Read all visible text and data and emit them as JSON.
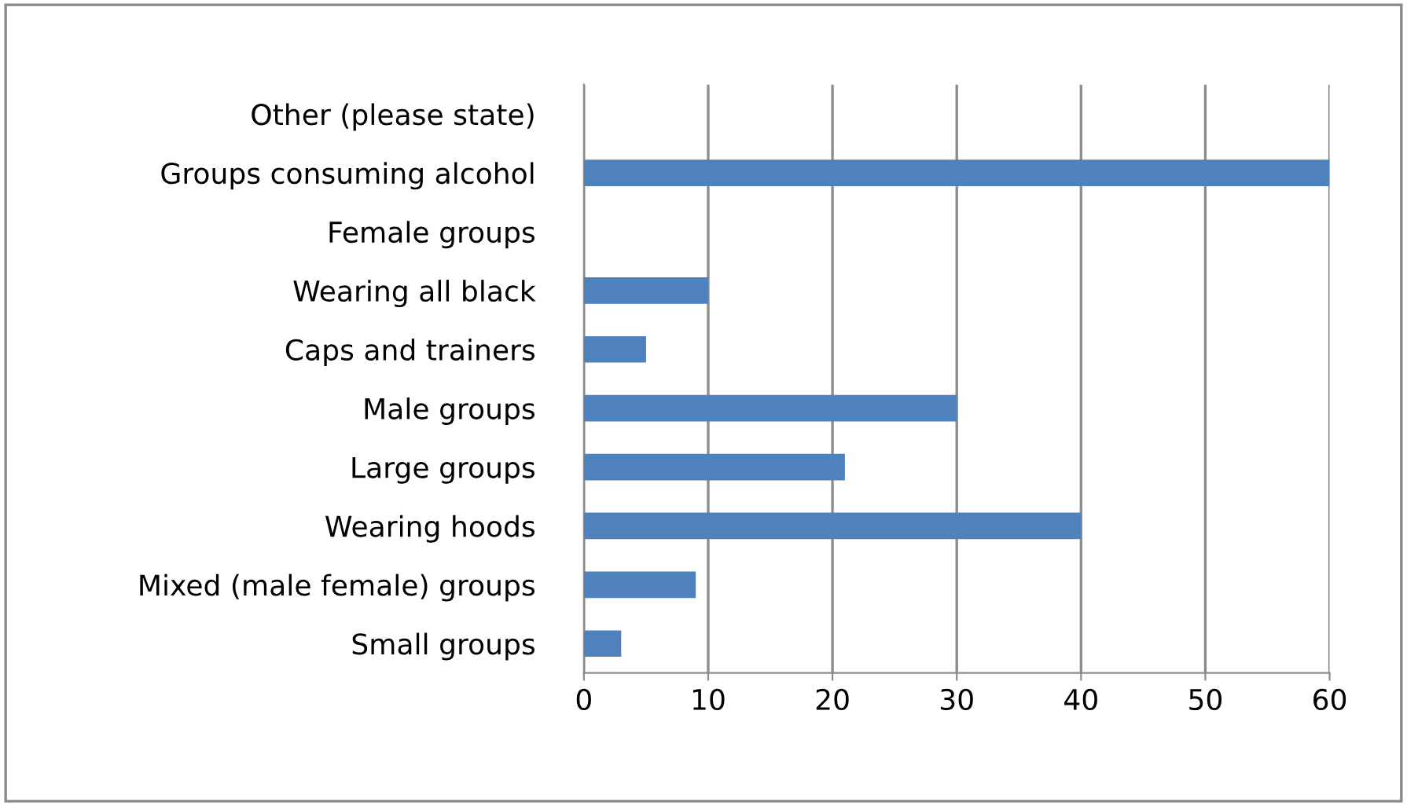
{
  "chart_data": {
    "type": "bar",
    "orientation": "horizontal",
    "categories": [
      "Other (please state)",
      "Groups consuming alcohol",
      "Female groups",
      "Wearing all black",
      "Caps and trainers",
      "Male groups",
      "Large groups",
      "Wearing hoods",
      "Mixed (male female) groups",
      "Small groups"
    ],
    "values": [
      0,
      60,
      0,
      10,
      5,
      30,
      21,
      40,
      9,
      3
    ],
    "color": "#4f81bd",
    "xlim": [
      0,
      60
    ],
    "xticks": [
      0,
      10,
      20,
      30,
      40,
      50,
      60
    ],
    "grid": "x",
    "legend": false
  }
}
